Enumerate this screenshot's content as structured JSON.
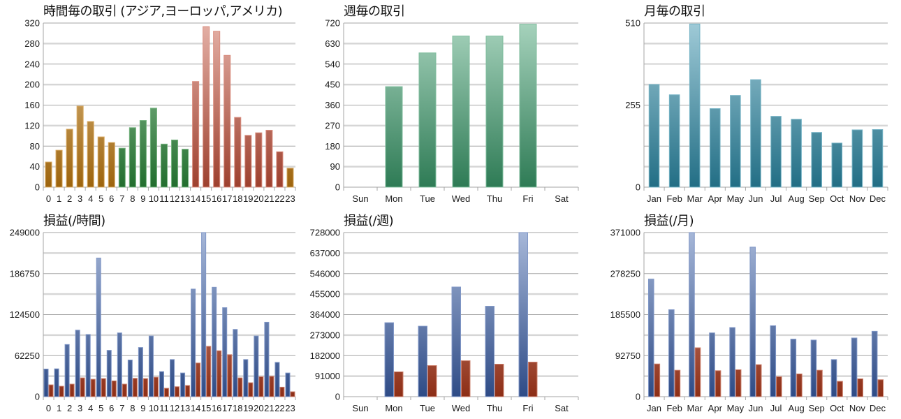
{
  "chart_data": [
    {
      "type": "bar",
      "title": "時間毎の取引 (アジア,ヨーロッパ,アメリカ)",
      "categories": [
        "0",
        "1",
        "2",
        "3",
        "4",
        "5",
        "6",
        "7",
        "8",
        "9",
        "10",
        "11",
        "12",
        "13",
        "14",
        "15",
        "16",
        "17",
        "18",
        "19",
        "20",
        "21",
        "22",
        "23"
      ],
      "series": [
        {
          "name": "trades",
          "values": [
            49,
            72,
            113,
            158,
            128,
            98,
            87,
            76,
            116,
            130,
            154,
            84,
            92,
            74,
            206,
            313,
            304,
            257,
            136,
            101,
            106,
            111,
            69,
            37
          ]
        }
      ],
      "bar_colors": [
        "#c47d10",
        "#c47d10",
        "#c47d10",
        "#c47d10",
        "#c47d10",
        "#c47d10",
        "#c47d10",
        "#2a8a3a",
        "#2a8a3a",
        "#2a8a3a",
        "#2a8a3a",
        "#2a8a3a",
        "#2a8a3a",
        "#2a8a3a",
        "#c4503a",
        "#c4503a",
        "#c4503a",
        "#c4503a",
        "#c4503a",
        "#c4503a",
        "#c4503a",
        "#c4503a",
        "#c4503a",
        "#c47d10"
      ],
      "ylim": [
        0,
        320
      ],
      "y_ticks": [
        0,
        40,
        80,
        120,
        160,
        200,
        240,
        280,
        320
      ],
      "grid": true
    },
    {
      "type": "bar",
      "title": "週毎の取引",
      "categories": [
        "Sun",
        "Mon",
        "Tue",
        "Wed",
        "Thu",
        "Fri",
        "Sat"
      ],
      "series": [
        {
          "name": "trades",
          "values": [
            0,
            441,
            589,
            663,
            663,
            715,
            0
          ],
          "color": "#3a9a6a"
        }
      ],
      "ylim": [
        0,
        720
      ],
      "y_ticks": [
        0,
        90,
        180,
        270,
        360,
        450,
        540,
        630,
        720
      ],
      "grid": true
    },
    {
      "type": "bar",
      "title": "月毎の取引",
      "categories": [
        "Jan",
        "Feb",
        "Mar",
        "Apr",
        "May",
        "Jun",
        "Jul",
        "Aug",
        "Sep",
        "Oct",
        "Nov",
        "Dec"
      ],
      "series": [
        {
          "name": "trades",
          "values": [
            319,
            287,
            507,
            244,
            285,
            334,
            220,
            211,
            170,
            137,
            178,
            179
          ],
          "color": "#2a8aa6"
        }
      ],
      "ylim": [
        0,
        510
      ],
      "y_ticks": [
        0,
        255,
        510
      ],
      "grid": true
    },
    {
      "type": "bar",
      "title": "損益(/時間)",
      "categories": [
        "0",
        "1",
        "2",
        "3",
        "4",
        "5",
        "6",
        "7",
        "8",
        "9",
        "10",
        "11",
        "12",
        "13",
        "14",
        "15",
        "16",
        "17",
        "18",
        "19",
        "20",
        "21",
        "22",
        "23"
      ],
      "series": [
        {
          "name": "profit",
          "color": "#3a5ea8",
          "values": [
            41900,
            42200,
            79100,
            100900,
            94300,
            210300,
            70300,
            96700,
            55600,
            74600,
            92100,
            38000,
            56300,
            35900,
            163200,
            249000,
            166000,
            135000,
            102000,
            56300,
            92100,
            112900,
            52000,
            35900
          ]
        },
        {
          "name": "loss",
          "color": "#b03a1c",
          "values": [
            17900,
            15800,
            19000,
            28500,
            26400,
            27400,
            23900,
            19000,
            27800,
            27400,
            29500,
            12700,
            15100,
            16900,
            51000,
            76300,
            69600,
            63700,
            28500,
            21100,
            30200,
            30900,
            14400,
            7400
          ]
        }
      ],
      "ylim": [
        0,
        249000
      ],
      "y_ticks": [
        0,
        62250,
        124500,
        186750,
        249000
      ],
      "grid": true
    },
    {
      "type": "bar",
      "title": "損益(/週)",
      "categories": [
        "Sun",
        "Mon",
        "Tue",
        "Wed",
        "Thu",
        "Fri",
        "Sat"
      ],
      "series": [
        {
          "name": "profit",
          "color": "#3a5ea8",
          "values": [
            0,
            328000,
            312500,
            486300,
            401000,
            728000,
            0
          ]
        },
        {
          "name": "loss",
          "color": "#b03a1c",
          "values": [
            0,
            110000,
            137800,
            159300,
            144000,
            153200,
            0
          ]
        }
      ],
      "ylim": [
        0,
        728000
      ],
      "y_ticks": [
        0,
        91000,
        182000,
        273000,
        364000,
        455000,
        546000,
        637000,
        728000
      ],
      "grid": true
    },
    {
      "type": "bar",
      "title": "損益(/月)",
      "categories": [
        "Jan",
        "Feb",
        "Mar",
        "Apr",
        "May",
        "Jun",
        "Jul",
        "Aug",
        "Sep",
        "Oct",
        "Nov",
        "Dec"
      ],
      "series": [
        {
          "name": "profit",
          "color": "#3a5ea8",
          "values": [
            265700,
            196500,
            371000,
            144100,
            156200,
            338000,
            160300,
            130000,
            127900,
            83800,
            132600,
            147800
          ]
        },
        {
          "name": "loss",
          "color": "#b03a1c",
          "values": [
            73900,
            59700,
            110500,
            58700,
            60800,
            72300,
            45100,
            51400,
            59700,
            34600,
            40300,
            38300
          ]
        }
      ],
      "ylim": [
        0,
        371000
      ],
      "y_ticks": [
        0,
        92750,
        185500,
        278250,
        371000
      ],
      "grid": true
    }
  ]
}
